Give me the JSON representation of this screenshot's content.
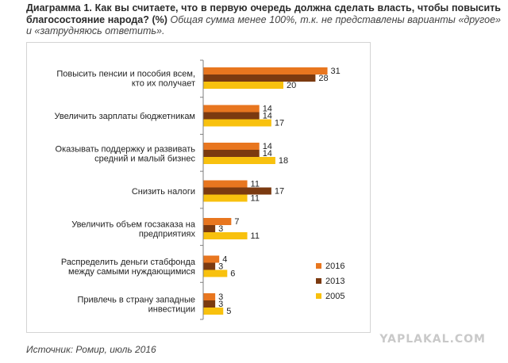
{
  "title": {
    "lead": "Диаграмма 1. Как вы считаете, что в первую очередь должна сделать власть, чтобы повысить благосостояние народа? (%)",
    "note": "Общая сумма менее 100%, т.к. не представлены варианты «другое» и «затрудняюсь ответить»."
  },
  "source": "Источник: Ромир, июль 2016",
  "watermark": "YAPLAKAL.COM",
  "chart_data": {
    "type": "bar",
    "orientation": "horizontal",
    "categories": [
      [
        "Повысить пенсии и пособия всем,",
        "кто их получает"
      ],
      [
        "Увеличить зарплаты бюджетникам"
      ],
      [
        "Оказывать поддержку и развивать",
        "средний и малый бизнес"
      ],
      [
        "Снизить налоги"
      ],
      [
        "Увеличить объем госзаказа на",
        "предприятиях"
      ],
      [
        "Распределить деньги стабфонда",
        "между самыми нуждающимися"
      ],
      [
        "Привлечь в страну западные",
        "инвестиции"
      ]
    ],
    "series": [
      {
        "name": "2016",
        "color": "#e8761f",
        "values": [
          31,
          14,
          14,
          11,
          7,
          4,
          3
        ]
      },
      {
        "name": "2013",
        "color": "#7b3a10",
        "values": [
          28,
          14,
          14,
          17,
          3,
          3,
          3
        ]
      },
      {
        "name": "2005",
        "color": "#f8c10e",
        "values": [
          20,
          17,
          18,
          11,
          11,
          6,
          5
        ]
      }
    ],
    "xlim": [
      0,
      35
    ],
    "data_labels": true,
    "legend_position": "bottom-right"
  }
}
